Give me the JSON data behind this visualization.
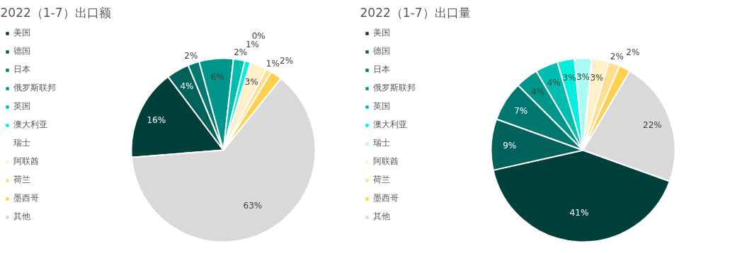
{
  "chart_data": [
    {
      "type": "pie",
      "title": "2022（1-7）出口额",
      "legend": "left",
      "categories": [
        "美国",
        "德国",
        "日本",
        "俄罗斯联邦",
        "英国",
        "澳大利亚",
        "瑞士",
        "阿联酋",
        "荷兰",
        "墨西哥",
        "其他"
      ],
      "values": [
        16,
        4,
        2,
        6,
        2,
        1,
        0,
        3,
        1,
        2,
        63
      ],
      "value_labels": [
        "16%",
        "4%",
        "2%",
        "6%",
        "2%",
        "1%",
        "0%",
        "3%",
        "1%",
        "2%",
        "63%"
      ],
      "colors": [
        "#003f3a",
        "#00605a",
        "#00786f",
        "#00958a",
        "#00bdb0",
        "#00f0dd",
        "#a8fbf2",
        "#fff0cc",
        "#ffdf8c",
        "#ffd050",
        "#d9d9d9"
      ]
    },
    {
      "type": "pie",
      "title": "2022（1-7）出口量",
      "legend": "left",
      "categories": [
        "美国",
        "德国",
        "日本",
        "俄罗斯联邦",
        "英国",
        "澳大利亚",
        "瑞士",
        "阿联酋",
        "荷兰",
        "墨西哥",
        "其他"
      ],
      "values": [
        41,
        9,
        7,
        4,
        4,
        3,
        3,
        3,
        2,
        2,
        22
      ],
      "value_labels": [
        "41%",
        "9%",
        "7%",
        "4%",
        "4%",
        "3%",
        "3%",
        "3%",
        "2%",
        "2%",
        "22%"
      ],
      "colors": [
        "#003f3a",
        "#00605a",
        "#00786f",
        "#00958a",
        "#00bdb0",
        "#00f0dd",
        "#a8fbf2",
        "#fff0cc",
        "#ffdf8c",
        "#ffd050",
        "#d9d9d9"
      ]
    }
  ]
}
